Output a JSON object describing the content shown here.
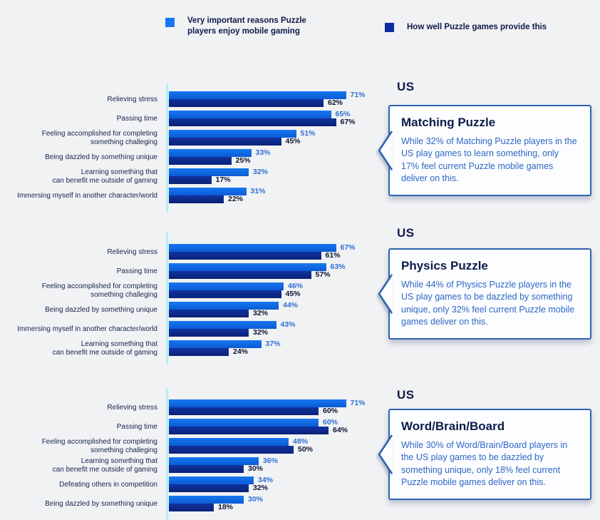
{
  "page": {
    "background": "#F1F2F4"
  },
  "legend": {
    "items": [
      {
        "label": "Very important reasons Puzzle\nplayers enjoy mobile gaming",
        "color": "#1877F2"
      },
      {
        "label": "How well Puzzle games provide this",
        "color": "#0B2DA1"
      }
    ]
  },
  "colors": {
    "important_bar_top": "#1677F0",
    "important_bar_bottom": "#0A5BD4",
    "provide_bar_top": "#11339E",
    "provide_bar_bottom": "#0A2277",
    "important_value_text": "#2F6FD3",
    "provide_value_text": "#0B1430",
    "axis": "#B6EDF4",
    "callout_border": "#2E63B0",
    "callout_body_text": "#2E66C4",
    "heading_text": "#0D1A4A"
  },
  "chart_data": [
    {
      "type": "bar",
      "orientation": "horizontal",
      "region": "US",
      "title": "Matching Puzzle",
      "unit": "%",
      "xlim": [
        0,
        100
      ],
      "grid": false,
      "legend_position": "top",
      "categories": [
        "Relieving stress",
        "Passing time",
        "Feeling accomplished for completing\nsomething challeging",
        "Being dazzled by something unique",
        "Learning something that\ncan benefit me outside of gaming",
        "Immersing myself in another character/world"
      ],
      "series": [
        {
          "name": "Very important reasons Puzzle players enjoy mobile gaming",
          "values": [
            71,
            65,
            51,
            33,
            32,
            31
          ]
        },
        {
          "name": "How well Puzzle games provide this",
          "values": [
            62,
            67,
            45,
            25,
            17,
            22
          ]
        }
      ],
      "callout": {
        "region": "US",
        "title": "Matching Puzzle",
        "body": "While 32% of Matching Puzzle players in the US play games to learn something, only 17% feel current Puzzle mobile games deliver on this."
      }
    },
    {
      "type": "bar",
      "orientation": "horizontal",
      "region": "US",
      "title": "Physics Puzzle",
      "unit": "%",
      "xlim": [
        0,
        100
      ],
      "grid": false,
      "legend_position": "top",
      "categories": [
        "Relieving stress",
        "Passing time",
        "Feeling accomplished for completing\nsomething challeging",
        "Being dazzled by something unique",
        "Immersing myself in another character/world",
        "Learning something that\ncan benefit me outside of gaming"
      ],
      "series": [
        {
          "name": "Very important reasons Puzzle players enjoy mobile gaming",
          "values": [
            67,
            63,
            46,
            44,
            43,
            37
          ]
        },
        {
          "name": "How well Puzzle games provide this",
          "values": [
            61,
            57,
            45,
            32,
            32,
            24
          ]
        }
      ],
      "callout": {
        "region": "US",
        "title": "Physics Puzzle",
        "body": "While 44% of Physics Puzzle players in the US play games to be dazzled by something unique, only 32% feel current Puzzle mobile games deliver on this."
      }
    },
    {
      "type": "bar",
      "orientation": "horizontal",
      "region": "US",
      "title": "Word/Brain/Board",
      "unit": "%",
      "xlim": [
        0,
        100
      ],
      "grid": false,
      "legend_position": "top",
      "categories": [
        "Relieving stress",
        "Passing time",
        "Feeling accomplished for completing\nsomething challeging",
        "Learning something that\ncan benefit me outside of gaming",
        "Defeating others in competition",
        "Being dazzled by something unique"
      ],
      "series": [
        {
          "name": "Very important reasons Puzzle players enjoy mobile gaming",
          "values": [
            71,
            60,
            48,
            36,
            34,
            30
          ]
        },
        {
          "name": "How well Puzzle games provide this",
          "values": [
            60,
            64,
            50,
            30,
            32,
            18
          ]
        }
      ],
      "callout": {
        "region": "US",
        "title": "Word/Brain/Board",
        "body": "While 30% of Word/Brain/Board players in the US play games to be dazzled by something unique, only 18% feel current Puzzle mobile games deliver on this."
      }
    }
  ]
}
